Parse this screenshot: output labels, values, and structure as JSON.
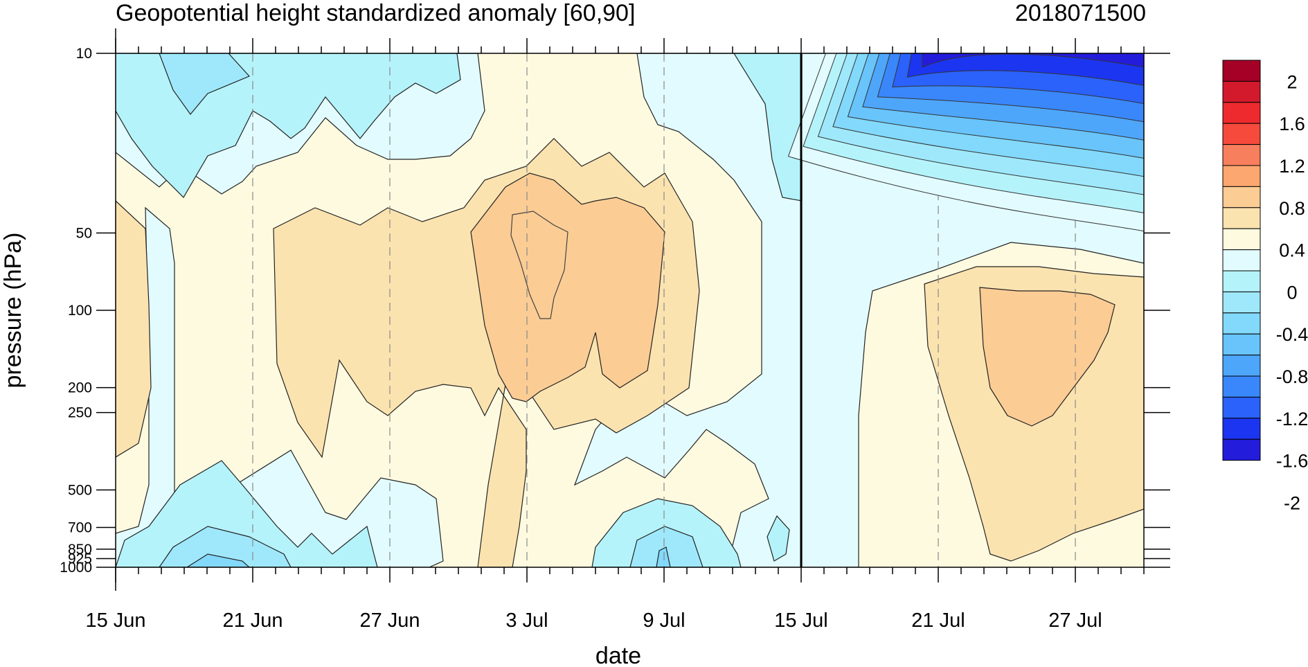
{
  "title_left": "Geopotential height standardized anomaly [60,90]",
  "title_right": "2018071500",
  "chart_data": {
    "type": "heatmap",
    "xlabel": "date",
    "ylabel": "pressure (hPa)",
    "x_range": [
      "15 Jun",
      "30 Jul"
    ],
    "x_ticks": [
      "15 Jun",
      "21 Jun",
      "27 Jun",
      "3 Jul",
      "9 Jul",
      "15 Jul",
      "21 Jul",
      "27 Jul"
    ],
    "y_ticks": [
      "10",
      "50",
      "100",
      "200",
      "250",
      "500",
      "700",
      "850",
      "925",
      "1000"
    ],
    "y_scale": "log",
    "y_range": [
      1000,
      10
    ],
    "forecast_start": "15 Jul",
    "grid": "dashed vertical lines at x ticks",
    "colorbar": {
      "labels": [
        "2",
        "1.6",
        "1.2",
        "0.8",
        "0.4",
        "0",
        "-0.4",
        "-0.8",
        "-1.2",
        "-1.6",
        "-2"
      ],
      "colors": [
        "#a50026",
        "#d21a2c",
        "#ee2a2e",
        "#f64a3c",
        "#f87f5e",
        "#fba76f",
        "#fbcc94",
        "#fbe3b0",
        "#fefae0",
        "#e2fbfe",
        "#b5f3fb",
        "#9fe8fb",
        "#82d9fb",
        "#68c4fb",
        "#4ea6fb",
        "#3a87fb",
        "#2a62fb",
        "#1c35f0",
        "#241cdb"
      ],
      "position": "right"
    },
    "features": [
      {
        "name": "stratospheric negative anomaly",
        "dates": [
          "22 Jul",
          "30 Jul"
        ],
        "pressure": [
          10,
          50
        ],
        "min_value": -2.0
      },
      {
        "name": "lower stratosphere positive anomaly",
        "dates": [
          "3 Jul",
          "8 Jul"
        ],
        "pressure": [
          50,
          200
        ],
        "max_value": 0.7
      },
      {
        "name": "forecast positive anomaly",
        "dates": [
          "24 Jul",
          "28 Jul"
        ],
        "pressure": [
          100,
          250
        ],
        "max_value": 0.7
      },
      {
        "name": "near-surface negative anomaly",
        "dates": [
          "17 Jun",
          "22 Jun"
        ],
        "pressure": [
          700,
          1000
        ],
        "min_value": -0.5
      }
    ]
  }
}
